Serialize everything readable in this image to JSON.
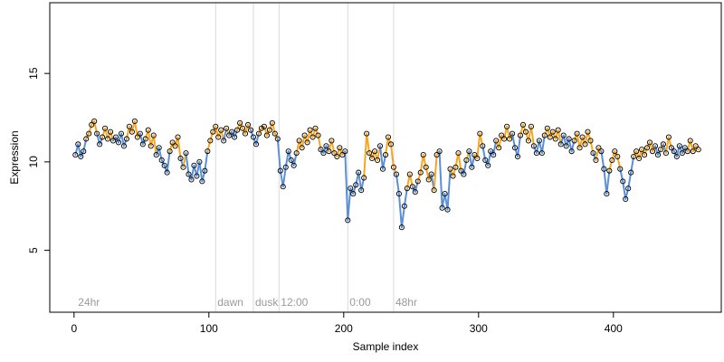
{
  "chart_data": {
    "type": "scatter",
    "xlabel": "Sample index",
    "ylabel": "Expression",
    "xlim": [
      -18,
      480
    ],
    "ylim": [
      1.5,
      19
    ],
    "xticks": [
      0,
      100,
      200,
      300,
      400
    ],
    "yticks": [
      5,
      10,
      15
    ],
    "grid": false,
    "colors": {
      "above": "#f5a623",
      "below": "#5b8fd6",
      "vline": "#d9d9d9",
      "phase_text": "#9a9a9a"
    },
    "phase_markers": [
      {
        "x": 105,
        "label": "dawn"
      },
      {
        "x": 133,
        "label": "dusk"
      },
      {
        "x": 152,
        "label": "12:00"
      },
      {
        "x": 203,
        "label": "0:00"
      },
      {
        "x": 237,
        "label": "48hr"
      }
    ],
    "corner_label": {
      "x": 3,
      "label": "24hr"
    },
    "points": [
      [
        1,
        10.4
      ],
      [
        3,
        11.0
      ],
      [
        5,
        10.3
      ],
      [
        7,
        10.6
      ],
      [
        9,
        11.3
      ],
      [
        11,
        11.6
      ],
      [
        13,
        12.1
      ],
      [
        15,
        12.3
      ],
      [
        17,
        11.6
      ],
      [
        19,
        11.0
      ],
      [
        21,
        11.4
      ],
      [
        23,
        11.9
      ],
      [
        25,
        11.3
      ],
      [
        27,
        11.7
      ],
      [
        29,
        11.2
      ],
      [
        31,
        11.4
      ],
      [
        33,
        11.1
      ],
      [
        35,
        11.6
      ],
      [
        37,
        10.9
      ],
      [
        39,
        11.3
      ],
      [
        41,
        12.0
      ],
      [
        43,
        11.7
      ],
      [
        45,
        12.3
      ],
      [
        47,
        11.4
      ],
      [
        49,
        11.6
      ],
      [
        51,
        11.0
      ],
      [
        53,
        11.3
      ],
      [
        55,
        11.8
      ],
      [
        57,
        10.9
      ],
      [
        59,
        11.5
      ],
      [
        61,
        10.4
      ],
      [
        63,
        10.8
      ],
      [
        65,
        10.1
      ],
      [
        67,
        9.8
      ],
      [
        69,
        9.4
      ],
      [
        71,
        10.6
      ],
      [
        73,
        11.1
      ],
      [
        75,
        10.9
      ],
      [
        77,
        11.4
      ],
      [
        79,
        10.2
      ],
      [
        81,
        9.7
      ],
      [
        83,
        10.5
      ],
      [
        85,
        9.3
      ],
      [
        87,
        9.0
      ],
      [
        89,
        9.8
      ],
      [
        91,
        9.2
      ],
      [
        93,
        10.0
      ],
      [
        95,
        8.9
      ],
      [
        97,
        9.5
      ],
      [
        99,
        10.6
      ],
      [
        101,
        11.2
      ],
      [
        103,
        11.7
      ],
      [
        105,
        12.0
      ],
      [
        107,
        11.4
      ],
      [
        109,
        11.8
      ],
      [
        111,
        11.2
      ],
      [
        113,
        11.9
      ],
      [
        115,
        11.5
      ],
      [
        117,
        11.7
      ],
      [
        119,
        11.4
      ],
      [
        121,
        11.8
      ],
      [
        123,
        12.2
      ],
      [
        125,
        11.9
      ],
      [
        127,
        11.6
      ],
      [
        129,
        12.1
      ],
      [
        131,
        11.8
      ],
      [
        133,
        11.4
      ],
      [
        135,
        11.0
      ],
      [
        137,
        11.6
      ],
      [
        139,
        11.9
      ],
      [
        141,
        12.0
      ],
      [
        143,
        11.5
      ],
      [
        145,
        11.8
      ],
      [
        147,
        12.2
      ],
      [
        149,
        11.6
      ],
      [
        151,
        11.3
      ],
      [
        153,
        9.5
      ],
      [
        155,
        8.6
      ],
      [
        157,
        9.7
      ],
      [
        159,
        10.6
      ],
      [
        161,
        10.1
      ],
      [
        163,
        9.8
      ],
      [
        165,
        10.5
      ],
      [
        167,
        11.2
      ],
      [
        169,
        10.8
      ],
      [
        171,
        11.5
      ],
      [
        173,
        11.1
      ],
      [
        175,
        11.8
      ],
      [
        177,
        11.4
      ],
      [
        179,
        11.9
      ],
      [
        181,
        11.5
      ],
      [
        183,
        10.7
      ],
      [
        185,
        10.5
      ],
      [
        187,
        10.9
      ],
      [
        189,
        10.6
      ],
      [
        191,
        11.2
      ],
      [
        193,
        10.5
      ],
      [
        195,
        10.3
      ],
      [
        197,
        10.8
      ],
      [
        199,
        10.4
      ],
      [
        201,
        10.6
      ],
      [
        203,
        6.7
      ],
      [
        205,
        8.5
      ],
      [
        207,
        8.2
      ],
      [
        209,
        8.7
      ],
      [
        211,
        9.4
      ],
      [
        213,
        8.4
      ],
      [
        215,
        9.1
      ],
      [
        217,
        11.6
      ],
      [
        219,
        10.5
      ],
      [
        221,
        10.2
      ],
      [
        223,
        10.6
      ],
      [
        225,
        10.1
      ],
      [
        227,
        10.9
      ],
      [
        229,
        9.6
      ],
      [
        231,
        10.4
      ],
      [
        233,
        11.4
      ],
      [
        235,
        11.0
      ],
      [
        237,
        9.7
      ],
      [
        239,
        9.3
      ],
      [
        241,
        8.2
      ],
      [
        243,
        6.3
      ],
      [
        245,
        7.5
      ],
      [
        247,
        8.5
      ],
      [
        249,
        9.3
      ],
      [
        251,
        8.6
      ],
      [
        253,
        8.3
      ],
      [
        255,
        8.9
      ],
      [
        257,
        9.4
      ],
      [
        259,
        10.4
      ],
      [
        261,
        9.7
      ],
      [
        263,
        9.0
      ],
      [
        265,
        9.3
      ],
      [
        267,
        8.4
      ],
      [
        269,
        10.4
      ],
      [
        271,
        10.6
      ],
      [
        273,
        7.4
      ],
      [
        275,
        8.2
      ],
      [
        277,
        7.3
      ],
      [
        279,
        9.6
      ],
      [
        281,
        9.2
      ],
      [
        283,
        9.7
      ],
      [
        285,
        10.5
      ],
      [
        287,
        9.5
      ],
      [
        289,
        9.3
      ],
      [
        291,
        10.1
      ],
      [
        293,
        10.6
      ],
      [
        295,
        9.7
      ],
      [
        297,
        10.4
      ],
      [
        299,
        10.2
      ],
      [
        301,
        11.6
      ],
      [
        303,
        10.9
      ],
      [
        305,
        10.1
      ],
      [
        307,
        9.8
      ],
      [
        309,
        10.6
      ],
      [
        311,
        10.4
      ],
      [
        313,
        11.2
      ],
      [
        315,
        10.8
      ],
      [
        317,
        11.5
      ],
      [
        319,
        11.3
      ],
      [
        321,
        12.0
      ],
      [
        323,
        11.3
      ],
      [
        325,
        11.6
      ],
      [
        327,
        10.8
      ],
      [
        329,
        10.3
      ],
      [
        331,
        11.5
      ],
      [
        333,
        12.1
      ],
      [
        335,
        11.7
      ],
      [
        337,
        11.2
      ],
      [
        339,
        12.0
      ],
      [
        341,
        10.9
      ],
      [
        343,
        10.5
      ],
      [
        345,
        11.2
      ],
      [
        347,
        10.5
      ],
      [
        349,
        11.5
      ],
      [
        351,
        11.9
      ],
      [
        353,
        11.4
      ],
      [
        355,
        11.7
      ],
      [
        357,
        11.3
      ],
      [
        359,
        11.8
      ],
      [
        361,
        11.0
      ],
      [
        363,
        11.5
      ],
      [
        365,
        10.9
      ],
      [
        367,
        11.3
      ],
      [
        369,
        10.6
      ],
      [
        371,
        11.2
      ],
      [
        373,
        11.6
      ],
      [
        375,
        10.8
      ],
      [
        377,
        11.4
      ],
      [
        379,
        11.0
      ],
      [
        381,
        11.7
      ],
      [
        383,
        11.2
      ],
      [
        385,
        10.5
      ],
      [
        387,
        10.1
      ],
      [
        389,
        10.8
      ],
      [
        391,
        10.6
      ],
      [
        393,
        9.6
      ],
      [
        395,
        8.2
      ],
      [
        397,
        9.5
      ],
      [
        399,
        10.1
      ],
      [
        401,
        10.6
      ],
      [
        403,
        10.3
      ],
      [
        405,
        9.6
      ],
      [
        407,
        8.9
      ],
      [
        409,
        7.9
      ],
      [
        411,
        8.5
      ],
      [
        413,
        9.4
      ],
      [
        415,
        10.3
      ],
      [
        417,
        10.6
      ],
      [
        419,
        10.2
      ],
      [
        421,
        10.7
      ],
      [
        423,
        10.4
      ],
      [
        425,
        10.8
      ],
      [
        427,
        11.1
      ],
      [
        429,
        10.6
      ],
      [
        431,
        10.9
      ],
      [
        433,
        10.4
      ],
      [
        435,
        10.7
      ],
      [
        437,
        11.0
      ],
      [
        439,
        10.5
      ],
      [
        441,
        11.4
      ],
      [
        443,
        10.8
      ],
      [
        445,
        10.6
      ],
      [
        447,
        10.3
      ],
      [
        449,
        10.9
      ],
      [
        451,
        10.5
      ],
      [
        453,
        10.8
      ],
      [
        455,
        10.6
      ],
      [
        457,
        11.2
      ],
      [
        459,
        10.6
      ],
      [
        461,
        10.9
      ],
      [
        463,
        10.7
      ]
    ]
  }
}
